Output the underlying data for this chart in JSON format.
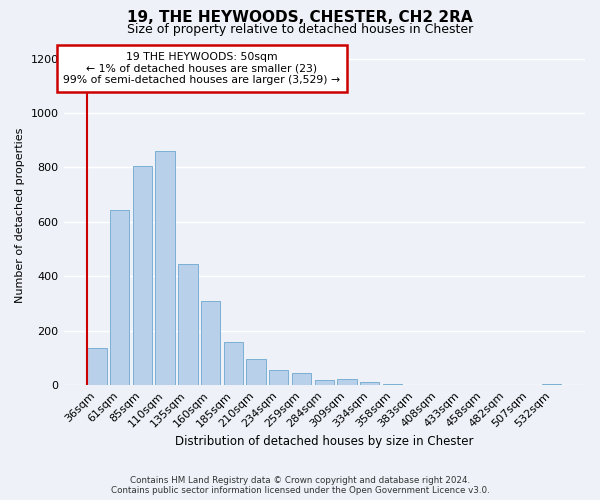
{
  "title_line1": "19, THE HEYWOODS, CHESTER, CH2 2RA",
  "title_line2": "Size of property relative to detached houses in Chester",
  "xlabel": "Distribution of detached houses by size in Chester",
  "ylabel": "Number of detached properties",
  "bar_labels": [
    "36sqm",
    "61sqm",
    "85sqm",
    "110sqm",
    "135sqm",
    "160sqm",
    "185sqm",
    "210sqm",
    "234sqm",
    "259sqm",
    "284sqm",
    "309sqm",
    "334sqm",
    "358sqm",
    "383sqm",
    "408sqm",
    "433sqm",
    "458sqm",
    "482sqm",
    "507sqm",
    "532sqm"
  ],
  "bar_values": [
    135,
    645,
    805,
    860,
    445,
    308,
    158,
    96,
    55,
    43,
    18,
    22,
    10,
    3,
    0,
    0,
    0,
    0,
    0,
    0,
    4
  ],
  "bar_color": "#b8d0ea",
  "bar_edge_color": "#7aafd4",
  "marker_line_color": "#cc0000",
  "annotation_title": "19 THE HEYWOODS: 50sqm",
  "annotation_line2": "← 1% of detached houses are smaller (23)",
  "annotation_line3": "99% of semi-detached houses are larger (3,529) →",
  "annotation_box_facecolor": "#ffffff",
  "annotation_box_edgecolor": "#cc0000",
  "ylim": [
    0,
    1250
  ],
  "yticks": [
    0,
    200,
    400,
    600,
    800,
    1000,
    1200
  ],
  "footer_line1": "Contains HM Land Registry data © Crown copyright and database right 2024.",
  "footer_line2": "Contains public sector information licensed under the Open Government Licence v3.0.",
  "bg_color": "#eef2f8",
  "grid_color": "#ffffff"
}
